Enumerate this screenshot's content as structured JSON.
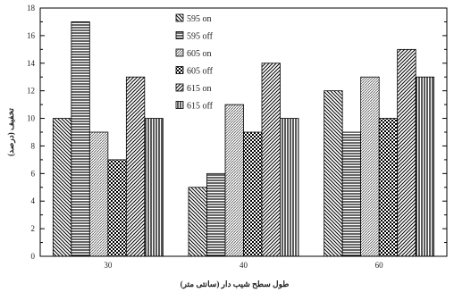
{
  "chart_data": {
    "type": "bar",
    "categories": [
      "30",
      "40",
      "60"
    ],
    "series": [
      {
        "name": "595 on",
        "values": [
          10,
          5,
          12
        ],
        "pattern": "diag-down"
      },
      {
        "name": "595 off",
        "values": [
          17,
          6,
          9
        ],
        "pattern": "horizontal"
      },
      {
        "name": "605 on",
        "values": [
          9,
          11,
          13
        ],
        "pattern": "diag-dense"
      },
      {
        "name": "605 off",
        "values": [
          7,
          9,
          10
        ],
        "pattern": "checker"
      },
      {
        "name": "615 on",
        "values": [
          13,
          14,
          15
        ],
        "pattern": "diag-up"
      },
      {
        "name": "615 off",
        "values": [
          10,
          10,
          13
        ],
        "pattern": "vertical"
      }
    ],
    "title": "",
    "xlabel": "طول سطح شیب دار (سانتی متر)",
    "ylabel": "تخفیف (درصد)",
    "ylim": [
      0,
      18
    ],
    "yticks": [
      0,
      2,
      4,
      6,
      8,
      10,
      12,
      14,
      16,
      18
    ],
    "grid": false,
    "legend": "top-left"
  }
}
